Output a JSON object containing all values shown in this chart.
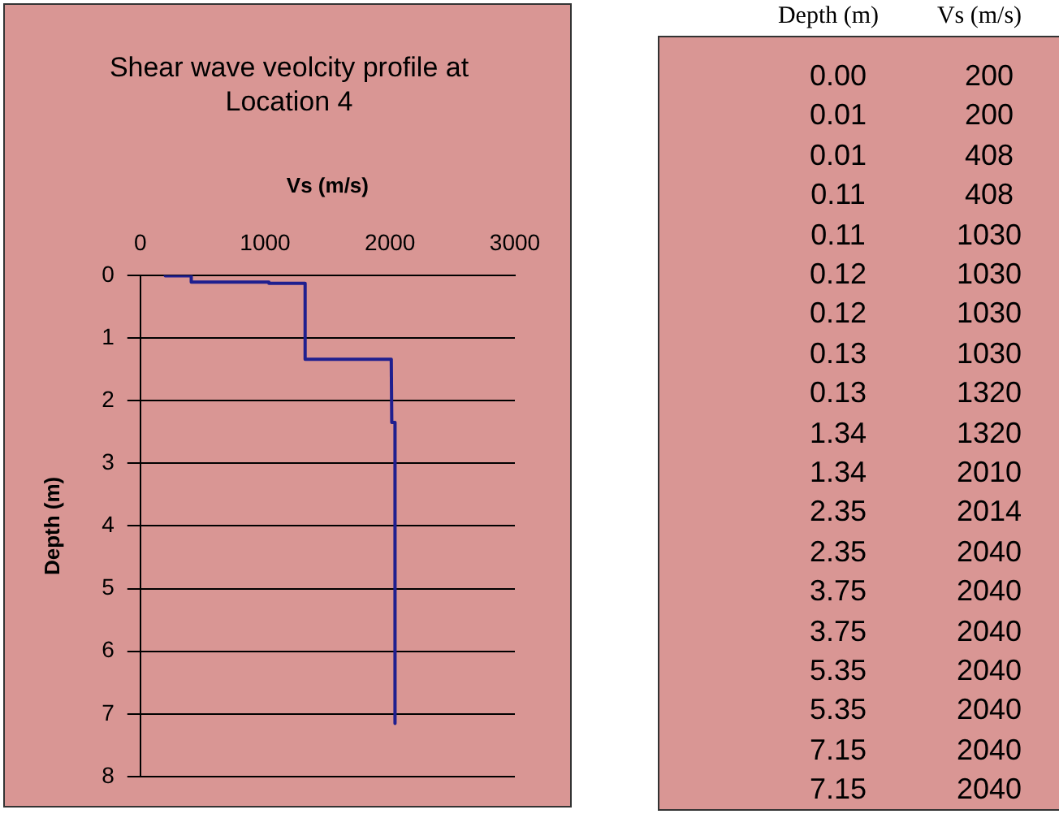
{
  "chart_data": [
    {
      "type": "line",
      "title": "Shear wave veolcity profile at Location  4",
      "xlabel": "Vs (m/s)",
      "ylabel": "Depth (m)",
      "x": [
        200,
        200,
        408,
        408,
        1030,
        1030,
        1030,
        1030,
        1320,
        1320,
        2010,
        2014,
        2040,
        2040,
        2040,
        2040,
        2040,
        2040,
        2040
      ],
      "series": [
        {
          "color": "#1f1f8f",
          "values": [
            0,
            0.01,
            0.01,
            0.11,
            0.11,
            0.12,
            0.12,
            0.13,
            0.13,
            1.34,
            1.34,
            2.35,
            2.35,
            3.75,
            3.75,
            5.35,
            5.35,
            7.15,
            7.15
          ]
        }
      ],
      "xlim": [
        0,
        3000
      ],
      "xticks": [
        0,
        1000,
        2000,
        3000
      ],
      "ylim": [
        8,
        0
      ],
      "yticks": [
        0,
        1,
        2,
        3,
        4,
        5,
        6,
        7,
        8
      ],
      "grid": "y",
      "legend": false,
      "marker": "none",
      "line_style": "solid"
    },
    {
      "type": "other",
      "annotations": [
        "Depth (m)",
        "Vs (m/s)",
        "0.00",
        "200",
        "0.01",
        "200",
        "0.01",
        "408",
        "0.11",
        "408",
        "0.11",
        "1030",
        "0.12",
        "1030",
        "0.12",
        "1030",
        "0.13",
        "1030",
        "0.13",
        "1320",
        "1.34",
        "1320",
        "1.34",
        "2010",
        "2.35",
        "2014",
        "2.35",
        "2040",
        "3.75",
        "2040",
        "3.75",
        "2040",
        "5.35",
        "2040",
        "5.35",
        "2040",
        "7.15",
        "2040",
        "7.15",
        "2040"
      ]
    }
  ]
}
